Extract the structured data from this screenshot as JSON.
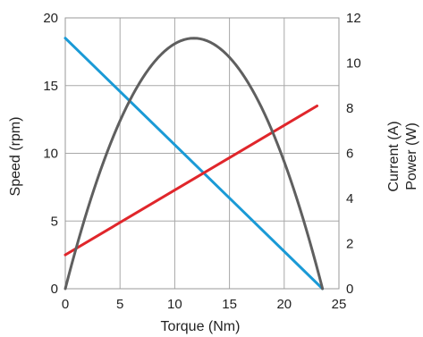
{
  "chart_data": {
    "type": "line",
    "xlabel": "Torque (Nm)",
    "ylabel_left": "Speed (rpm)",
    "ylabel_right_lines": [
      "Current (A)",
      "Power (W)"
    ],
    "x_ticks": [
      0,
      5,
      10,
      15,
      20,
      25
    ],
    "y_left_ticks": [
      0,
      5,
      10,
      15,
      20
    ],
    "y_right_ticks": [
      0,
      2,
      4,
      6,
      8,
      10,
      12
    ],
    "xlim": [
      0,
      25
    ],
    "ylim_left": [
      0,
      20
    ],
    "ylim_right": [
      0,
      12
    ],
    "grid": true,
    "series": [
      {
        "axis": "left",
        "color": "#1a9ad6",
        "x": [
          0,
          23.5
        ],
        "y": [
          18.5,
          0
        ]
      },
      {
        "axis": "right",
        "color": "#e0262b",
        "x": [
          0,
          23.0
        ],
        "y": [
          1.5,
          8.1
        ]
      },
      {
        "axis": "right",
        "color": "#5f5f5f",
        "shape": "parabola",
        "x_range": [
          0,
          23.5
        ],
        "peak": [
          11.75,
          11.1
        ]
      }
    ]
  }
}
